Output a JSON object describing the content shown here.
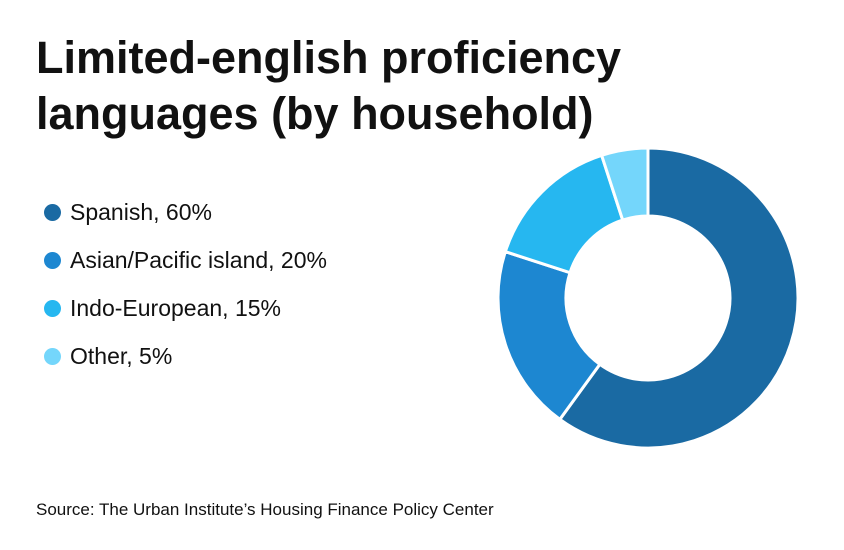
{
  "title": "Limited-english proficiency languages (by household)",
  "source": "Source: The Urban Institute’s Housing Finance Policy Center",
  "chart_data": {
    "type": "pie",
    "variant": "donut",
    "title": "Limited-english proficiency languages (by household)",
    "categories": [
      "Spanish",
      "Asian/Pacific island",
      "Indo-European",
      "Other"
    ],
    "values": [
      60,
      20,
      15,
      5
    ],
    "unit": "%",
    "colors": [
      "#1a6aa3",
      "#1d87d1",
      "#26b7f0",
      "#74d6fb"
    ],
    "legend_labels": [
      "Spanish, 60%",
      "Asian/Pacific island, 20%",
      "Indo-European, 15%",
      "Other, 5%"
    ],
    "legend_position": "left",
    "start_angle": "top, clockwise"
  }
}
